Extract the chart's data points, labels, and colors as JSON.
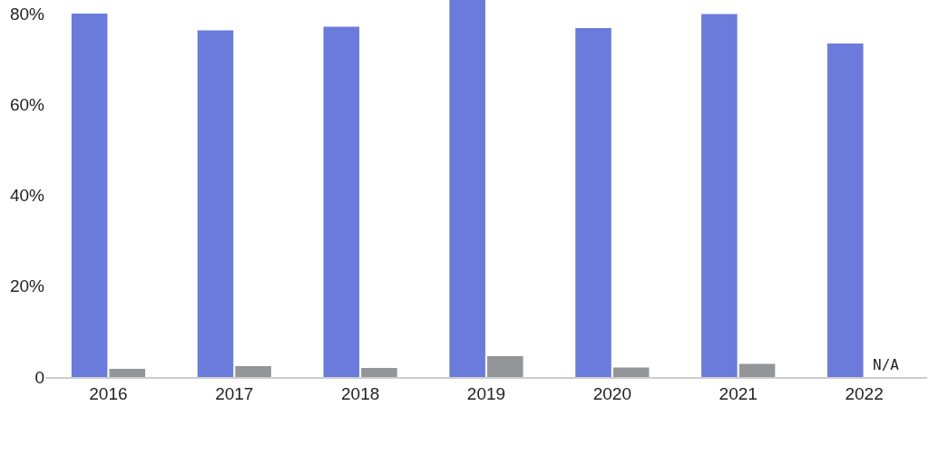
{
  "chart_data": {
    "type": "bar",
    "categories": [
      "2016",
      "2017",
      "2018",
      "2019",
      "2020",
      "2021",
      "2022"
    ],
    "series": [
      {
        "color": "#6b7bdb",
        "values": [
          80.0,
          76.3,
          77.1,
          83,
          76.8,
          79.9,
          73.4
        ]
      },
      {
        "color": "#939698",
        "values": [
          1.8,
          2.4,
          2.0,
          4.6,
          2.1,
          2.9,
          null
        ]
      }
    ],
    "ylim": [
      0,
      83
    ],
    "yticks": [
      {
        "value": 0,
        "label": "0"
      },
      {
        "value": 20,
        "label": "20%"
      },
      {
        "value": 40,
        "label": "40%"
      },
      {
        "value": 60,
        "label": "60%"
      },
      {
        "value": 80,
        "label": "80%"
      }
    ],
    "annotations": [
      {
        "text": "N/A",
        "x": "2022",
        "y": 0
      }
    ],
    "grid": false,
    "legend": false
  }
}
